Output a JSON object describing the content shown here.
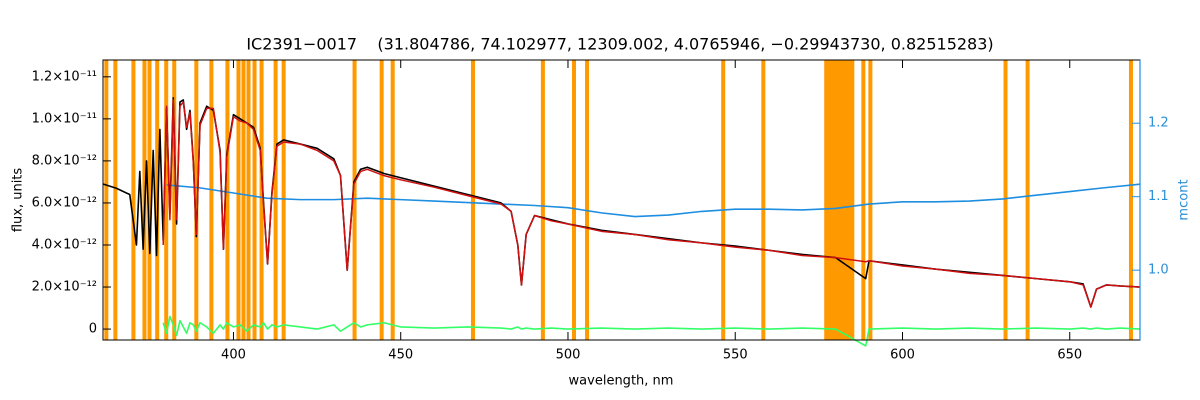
{
  "chart_data": {
    "type": "line",
    "title": "IC2391−0017    (31.804786, 74.102977, 12309.002, 4.0765946, −0.29943730, 0.82515283)",
    "x_label": "wavelength, nm",
    "y_label": "flux, units",
    "y2_label": "mcont",
    "xlim": [
      361,
      671
    ],
    "ylim": [
      -5.2e-13,
      1.28e-11
    ],
    "y2lim": [
      0.905,
      1.286
    ],
    "xticks": [
      400,
      450,
      500,
      550,
      600,
      650
    ],
    "yticks": [
      0,
      {
        "value": 2e-12,
        "label": "2.0×10⁻¹²"
      },
      {
        "value": 4e-12,
        "label": "4.0×10⁻¹²"
      },
      {
        "value": 6e-12,
        "label": "6.0×10⁻¹²"
      },
      {
        "value": 8e-12,
        "label": "8.0×10⁻¹²"
      },
      {
        "value": 1e-11,
        "label": "1.0×10⁻¹¹"
      },
      {
        "value": 1.2e-11,
        "label": "1.2×10⁻¹¹"
      }
    ],
    "y2ticks": [
      {
        "value": 1.0,
        "label": "1.0"
      },
      1.1,
      1.2
    ],
    "mask_color": "#ff9900",
    "masks": [
      [
        361.4,
        362.6
      ],
      [
        364.1,
        365.3
      ],
      [
        369.5,
        370.7
      ],
      [
        372.8,
        374.0
      ],
      [
        374.3,
        375.5
      ],
      [
        376.6,
        377.8
      ],
      [
        379.3,
        380.5
      ],
      [
        381.7,
        382.9
      ],
      [
        388.3,
        389.5
      ],
      [
        392.8,
        394.0
      ],
      [
        397.6,
        398.8
      ],
      [
        400.9,
        402.1
      ],
      [
        402.4,
        403.6
      ],
      [
        403.9,
        405.1
      ],
      [
        405.7,
        406.9
      ],
      [
        407.8,
        409.0
      ],
      [
        412.0,
        413.2
      ],
      [
        414.4,
        415.6
      ],
      [
        435.6,
        436.8
      ],
      [
        443.7,
        444.9
      ],
      [
        447.0,
        448.2
      ],
      [
        471.0,
        472.2
      ],
      [
        491.9,
        493.1
      ],
      [
        501.2,
        502.4
      ],
      [
        505.1,
        506.3
      ],
      [
        545.8,
        547.0
      ],
      [
        557.8,
        559.0
      ],
      [
        576.6,
        585.6
      ],
      [
        587.7,
        588.9
      ],
      [
        589.8,
        591.0
      ],
      [
        630.2,
        631.4
      ],
      [
        636.8,
        638.0
      ],
      [
        667.7,
        668.9
      ]
    ],
    "x": [
      361,
      365,
      369,
      371,
      372,
      373,
      374,
      375,
      376,
      377,
      378,
      379,
      380,
      381,
      382,
      383,
      384,
      385,
      386,
      387,
      388,
      388.9,
      390,
      392,
      394,
      396,
      397,
      398,
      400,
      402,
      404,
      406,
      408,
      409,
      410.2,
      411.5,
      413,
      415,
      420,
      425,
      430,
      432,
      434,
      436,
      438,
      440,
      445,
      450,
      460,
      470,
      480,
      483,
      485,
      486.1,
      487.5,
      490,
      495,
      500,
      510,
      520,
      530,
      540,
      550,
      560,
      570,
      580,
      589,
      590,
      600,
      610,
      620,
      630,
      640,
      650,
      654,
      656.3,
      658,
      661,
      665,
      671
    ],
    "series": [
      {
        "color": "#000000",
        "values": [
          6.9e-12,
          6.7e-12,
          6.4e-12,
          4e-12,
          7.5e-12,
          3.8e-12,
          8e-12,
          3.6e-12,
          8.5e-12,
          3.5e-12,
          9.5e-12,
          4.2e-12,
          1.05e-11,
          5.5e-12,
          1.1e-11,
          5e-12,
          1.08e-11,
          1.09e-11,
          9.5e-12,
          1.04e-11,
          8e-12,
          4.4e-12,
          9.8e-12,
          1.06e-11,
          1.04e-11,
          8.5e-12,
          3.8e-12,
          8.3e-12,
          1.02e-11,
          1e-11,
          9.8e-12,
          9.6e-12,
          8.6e-12,
          6e-12,
          3.1e-12,
          6.5e-12,
          8.8e-12,
          9e-12,
          8.8e-12,
          8.6e-12,
          8.1e-12,
          7.3e-12,
          2.8e-12,
          7e-12,
          7.6e-12,
          7.7e-12,
          7.4e-12,
          7.2e-12,
          6.8e-12,
          6.4e-12,
          6e-12,
          5.6e-12,
          4e-12,
          2.1e-12,
          4.5e-12,
          5.4e-12,
          5.2e-12,
          5e-12,
          4.7e-12,
          4.5e-12,
          4.3e-12,
          4.1e-12,
          3.95e-12,
          3.75e-12,
          3.55e-12,
          3.4e-12,
          2.4e-12,
          3.25e-12,
          3.05e-12,
          2.85e-12,
          2.7e-12,
          2.55e-12,
          2.4e-12,
          2.25e-12,
          2.15e-12,
          1.05e-12,
          1.9e-12,
          2.1e-12,
          2.05e-12,
          2e-12
        ]
      },
      {
        "color": "#d01010",
        "values": [
          null,
          null,
          null,
          null,
          null,
          null,
          null,
          null,
          null,
          null,
          null,
          4e-12,
          1.06e-11,
          5.2e-12,
          1.09e-11,
          5.2e-12,
          1.06e-11,
          1.08e-11,
          9.6e-12,
          1.03e-11,
          7.9e-12,
          4.5e-12,
          9.7e-12,
          1.05e-11,
          1.05e-11,
          8.4e-12,
          3.8e-12,
          8.2e-12,
          1.01e-11,
          9.9e-12,
          9.8e-12,
          9.5e-12,
          8.5e-12,
          5.9e-12,
          3.1e-12,
          6.4e-12,
          8.7e-12,
          8.9e-12,
          8.8e-12,
          8.5e-12,
          8e-12,
          7.3e-12,
          2.8e-12,
          6.9e-12,
          7.5e-12,
          7.6e-12,
          7.3e-12,
          7.1e-12,
          6.75e-12,
          6.35e-12,
          5.95e-12,
          5.6e-12,
          4e-12,
          2.1e-12,
          4.5e-12,
          5.4e-12,
          5.15e-12,
          5e-12,
          4.65e-12,
          4.5e-12,
          4.25e-12,
          4.1e-12,
          3.9e-12,
          3.75e-12,
          3.5e-12,
          3.4e-12,
          3.2e-12,
          3.25e-12,
          3e-12,
          2.85e-12,
          2.65e-12,
          2.55e-12,
          2.4e-12,
          2.25e-12,
          2.1e-12,
          1.05e-12,
          1.9e-12,
          2.1e-12,
          2.05e-12,
          2e-12
        ]
      },
      {
        "color": "#33ff66",
        "values": [
          null,
          null,
          null,
          null,
          null,
          null,
          null,
          null,
          null,
          null,
          null,
          3e-13,
          -2e-13,
          6e-13,
          2e-13,
          -3e-13,
          4e-13,
          1e-13,
          -2e-13,
          3e-13,
          2e-13,
          -1e-13,
          3e-13,
          1e-13,
          -2e-13,
          2e-13,
          0,
          3e-13,
          1e-13,
          2e-13,
          -1e-13,
          2e-13,
          1e-13,
          3e-13,
          0,
          2e-13,
          1e-13,
          2e-13,
          1e-13,
          0,
          2e-13,
          -1e-13,
          1e-13,
          3e-13,
          1e-13,
          2e-13,
          3e-13,
          1e-13,
          5e-14,
          1e-13,
          5e-14,
          0,
          1e-13,
          0,
          5e-14,
          0,
          5e-14,
          0,
          5e-14,
          0,
          5e-14,
          0,
          5e-14,
          0,
          5e-14,
          0,
          -8e-13,
          0,
          5e-14,
          0,
          5e-14,
          0,
          5e-14,
          0,
          5e-14,
          0,
          5e-14,
          0,
          5e-14,
          0
        ]
      },
      {
        "color": "#1e8ee0",
        "axis": "y2",
        "x": [
          380,
          390,
          400,
          410,
          420,
          430,
          440,
          450,
          460,
          470,
          480,
          490,
          500,
          510,
          520,
          530,
          540,
          550,
          560,
          570,
          580,
          590,
          600,
          610,
          620,
          630,
          640,
          650,
          660,
          671
        ],
        "values": [
          1.116,
          1.112,
          1.105,
          1.098,
          1.096,
          1.096,
          1.098,
          1.096,
          1.094,
          1.092,
          1.09,
          1.088,
          1.085,
          1.078,
          1.073,
          1.075,
          1.08,
          1.083,
          1.083,
          1.082,
          1.084,
          1.09,
          1.093,
          1.093,
          1.094,
          1.097,
          1.102,
          1.107,
          1.112,
          1.117
        ]
      }
    ]
  }
}
